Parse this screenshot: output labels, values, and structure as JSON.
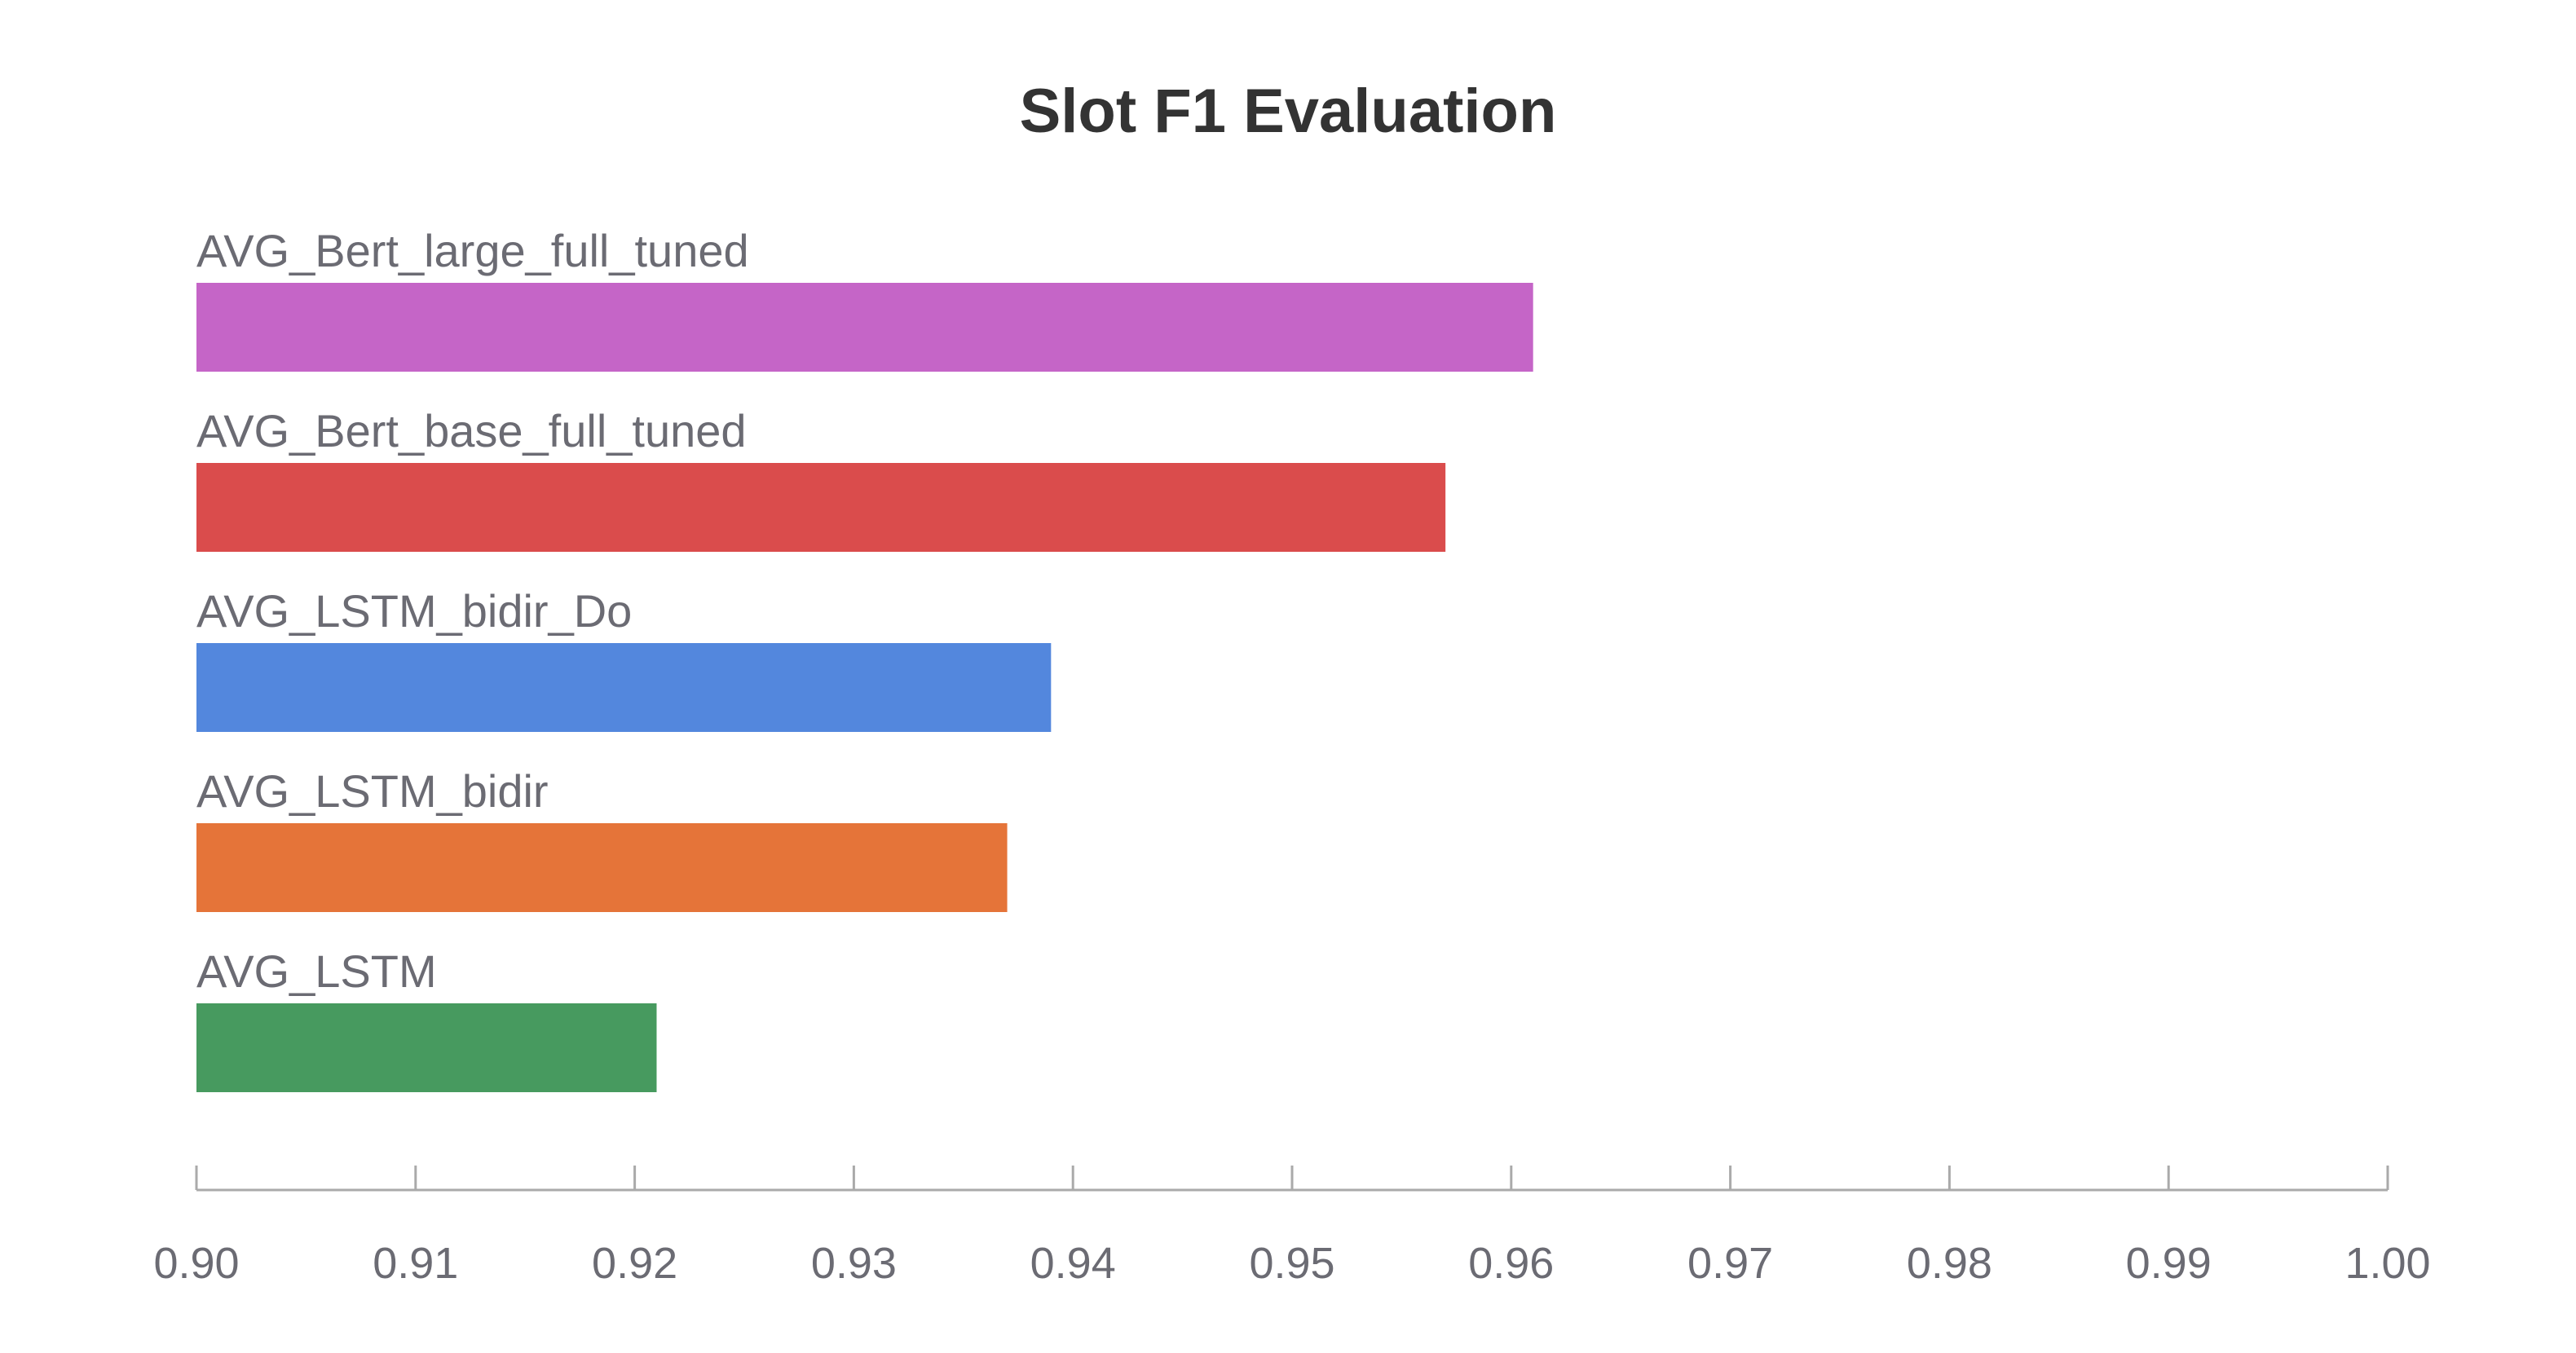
{
  "chart_data": {
    "type": "bar",
    "orientation": "horizontal",
    "title": "Slot F1 Evaluation",
    "xlabel": "",
    "ylabel": "",
    "xlim": [
      0.9,
      1.0
    ],
    "x_ticks": [
      "0.90",
      "0.91",
      "0.92",
      "0.93",
      "0.94",
      "0.95",
      "0.96",
      "0.97",
      "0.98",
      "0.99",
      "1.00"
    ],
    "grid": false,
    "legend": "none",
    "categories": [
      "AVG_Bert_large_full_tuned",
      "AVG_Bert_base_full_tuned",
      "AVG_LSTM_bidir_Do",
      "AVG_LSTM_bidir",
      "AVG_LSTM"
    ],
    "values": [
      0.961,
      0.957,
      0.939,
      0.937,
      0.921
    ],
    "colors": [
      "#c565c7",
      "#da4c4c",
      "#5387dd",
      "#e57439",
      "#479a5f"
    ]
  }
}
